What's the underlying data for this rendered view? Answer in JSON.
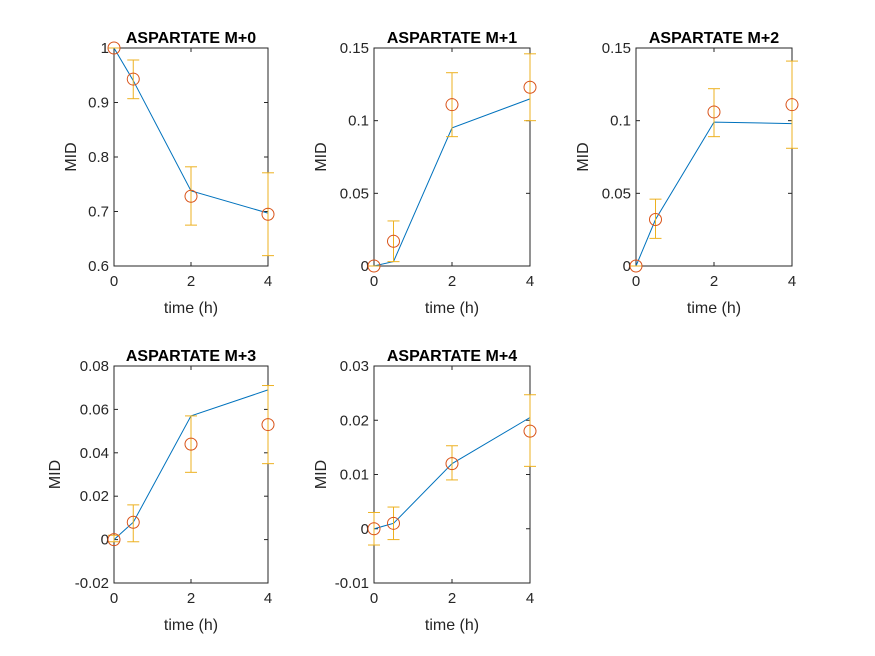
{
  "figure": {
    "colors": {
      "model_line": "#0072BD",
      "data_marker": "#D95319",
      "error_bar": "#EDB120",
      "axes": "#262626"
    }
  },
  "chart_data": [
    {
      "type": "line",
      "title": "ASPARTATE M+0",
      "xlabel": "time (h)",
      "ylabel": "MID",
      "xlim": [
        0,
        4
      ],
      "ylim": [
        0.6,
        1.0
      ],
      "xticks": [
        0,
        2,
        4
      ],
      "xtick_labels": [
        "0",
        "2",
        "4"
      ],
      "yticks": [
        0.6,
        0.7,
        0.8,
        0.9,
        1.0
      ],
      "ytick_labels": [
        "0.6",
        "0.7",
        "0.8",
        "0.9",
        "1"
      ],
      "grid": false,
      "series": [
        {
          "kind": "line",
          "x": [
            0,
            0.5,
            2,
            4
          ],
          "y": [
            1.0,
            0.94,
            0.738,
            0.697
          ]
        },
        {
          "kind": "errorbar",
          "x": [
            0,
            0.5,
            2,
            4
          ],
          "y": [
            1.0,
            0.943,
            0.728,
            0.695
          ],
          "ylow": [
            1.0,
            0.907,
            0.675,
            0.619
          ],
          "yhigh": [
            1.0,
            0.978,
            0.782,
            0.771
          ]
        }
      ]
    },
    {
      "type": "line",
      "title": "ASPARTATE M+1",
      "xlabel": "time (h)",
      "ylabel": "MID",
      "xlim": [
        0,
        4
      ],
      "ylim": [
        0,
        0.15
      ],
      "xticks": [
        0,
        2,
        4
      ],
      "xtick_labels": [
        "0",
        "2",
        "4"
      ],
      "yticks": [
        0,
        0.05,
        0.1,
        0.15
      ],
      "ytick_labels": [
        "0",
        "0.05",
        "0.1",
        "0.15"
      ],
      "grid": false,
      "series": [
        {
          "kind": "line",
          "x": [
            0,
            0.5,
            2,
            4
          ],
          "y": [
            0,
            0.003,
            0.095,
            0.115
          ]
        },
        {
          "kind": "errorbar",
          "x": [
            0,
            0.5,
            2,
            4
          ],
          "y": [
            0,
            0.017,
            0.111,
            0.123
          ],
          "ylow": [
            0,
            0.003,
            0.089,
            0.1
          ],
          "yhigh": [
            0,
            0.031,
            0.133,
            0.146
          ]
        }
      ]
    },
    {
      "type": "line",
      "title": "ASPARTATE M+2",
      "xlabel": "time (h)",
      "ylabel": "MID",
      "xlim": [
        0,
        4
      ],
      "ylim": [
        0,
        0.15
      ],
      "xticks": [
        0,
        2,
        4
      ],
      "xtick_labels": [
        "0",
        "2",
        "4"
      ],
      "yticks": [
        0,
        0.05,
        0.1,
        0.15
      ],
      "ytick_labels": [
        "0",
        "0.05",
        "0.1",
        "0.15"
      ],
      "grid": false,
      "series": [
        {
          "kind": "line",
          "x": [
            0,
            0.5,
            2,
            4
          ],
          "y": [
            0,
            0.032,
            0.099,
            0.098
          ]
        },
        {
          "kind": "errorbar",
          "x": [
            0,
            0.5,
            2,
            4
          ],
          "y": [
            0,
            0.032,
            0.106,
            0.111
          ],
          "ylow": [
            0,
            0.019,
            0.089,
            0.081
          ],
          "yhigh": [
            0,
            0.046,
            0.122,
            0.141
          ]
        }
      ]
    },
    {
      "type": "line",
      "title": "ASPARTATE M+3",
      "xlabel": "time (h)",
      "ylabel": "MID",
      "xlim": [
        0,
        4
      ],
      "ylim": [
        -0.02,
        0.08
      ],
      "xticks": [
        0,
        2,
        4
      ],
      "xtick_labels": [
        "0",
        "2",
        "4"
      ],
      "yticks": [
        -0.02,
        0,
        0.02,
        0.04,
        0.06,
        0.08
      ],
      "ytick_labels": [
        "-0.02",
        "0",
        "0.02",
        "0.04",
        "0.06",
        "0.08"
      ],
      "grid": false,
      "series": [
        {
          "kind": "line",
          "x": [
            0,
            0.5,
            2,
            4
          ],
          "y": [
            0,
            0.008,
            0.057,
            0.069
          ]
        },
        {
          "kind": "errorbar",
          "x": [
            0,
            0.5,
            2,
            4
          ],
          "y": [
            0,
            0.008,
            0.044,
            0.053
          ],
          "ylow": [
            -0.001,
            -0.001,
            0.031,
            0.035
          ],
          "yhigh": [
            0.002,
            0.016,
            0.057,
            0.071
          ]
        }
      ]
    },
    {
      "type": "line",
      "title": "ASPARTATE M+4",
      "xlabel": "time (h)",
      "ylabel": "MID",
      "xlim": [
        0,
        4
      ],
      "ylim": [
        -0.01,
        0.03
      ],
      "xticks": [
        0,
        2,
        4
      ],
      "xtick_labels": [
        "0",
        "2",
        "4"
      ],
      "yticks": [
        -0.01,
        0,
        0.01,
        0.02,
        0.03
      ],
      "ytick_labels": [
        "-0.01",
        "0",
        "0.01",
        "0.02",
        "0.03"
      ],
      "grid": false,
      "series": [
        {
          "kind": "line",
          "x": [
            0,
            0.5,
            2,
            4
          ],
          "y": [
            0,
            0.001,
            0.012,
            0.0205
          ]
        },
        {
          "kind": "errorbar",
          "x": [
            0,
            0.5,
            2,
            4
          ],
          "y": [
            0,
            0.001,
            0.012,
            0.018
          ],
          "ylow": [
            -0.003,
            -0.002,
            0.009,
            0.0115
          ],
          "yhigh": [
            0.003,
            0.004,
            0.0153,
            0.0247
          ]
        }
      ]
    }
  ]
}
